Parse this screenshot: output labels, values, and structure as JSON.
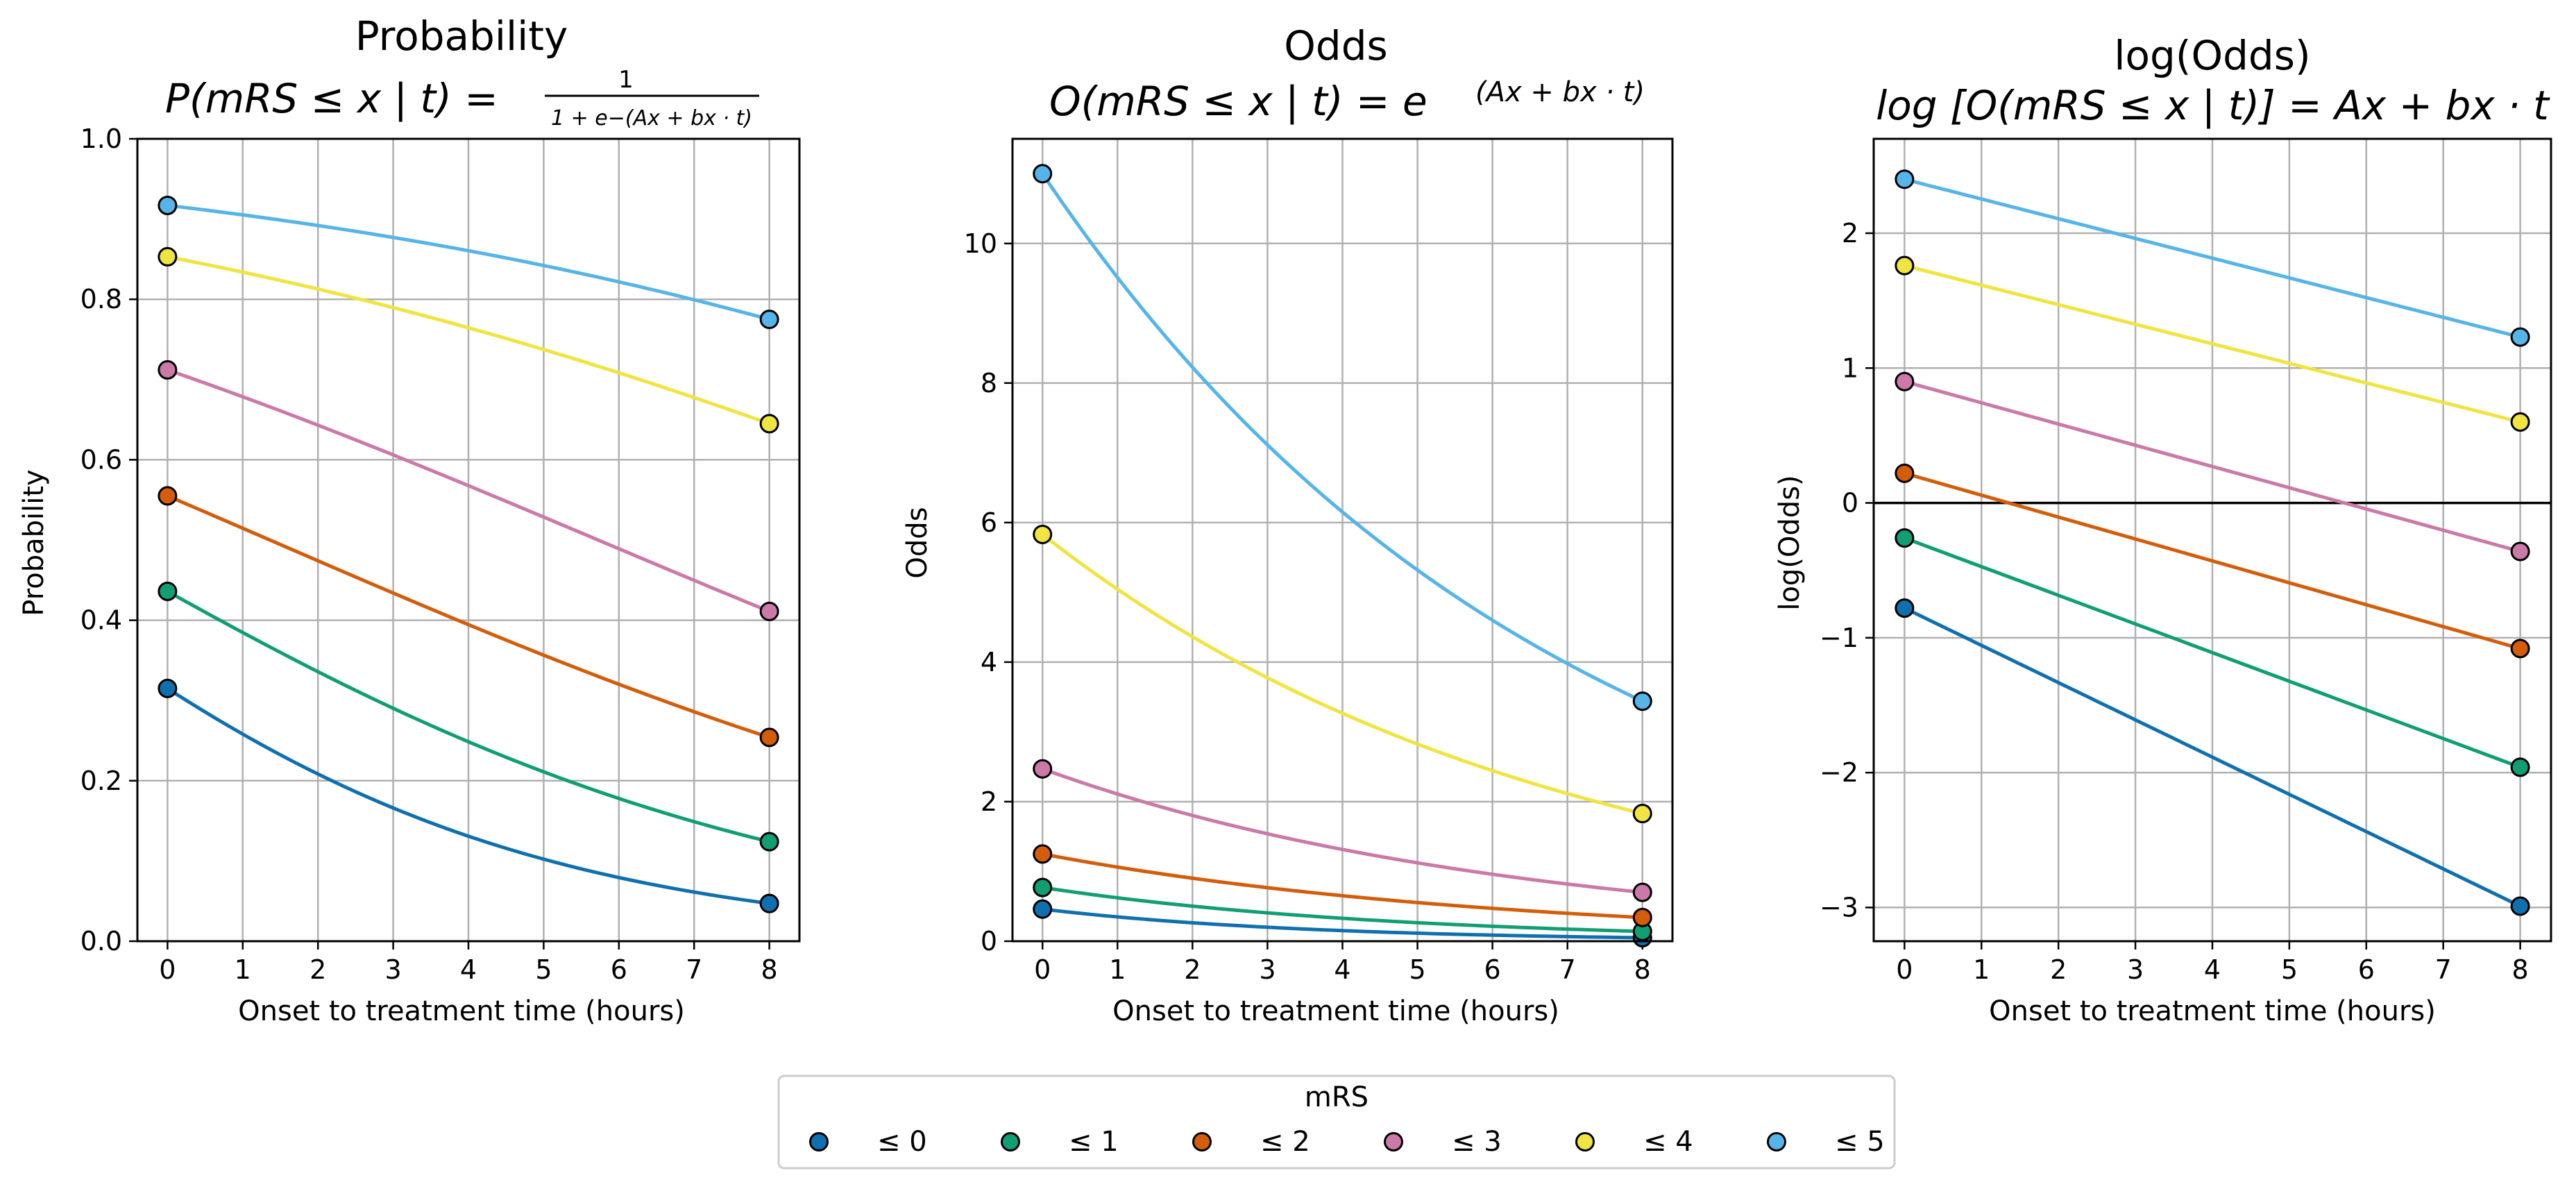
{
  "figure": {
    "legend": {
      "title": "mRS",
      "entries": [
        {
          "label": "≤ 0",
          "color": "#0f6faf"
        },
        {
          "label": "≤ 1",
          "color": "#129e73"
        },
        {
          "label": "≤ 2",
          "color": "#d35d0b"
        },
        {
          "label": "≤ 3",
          "color": "#cb79a7"
        },
        {
          "label": "≤ 4",
          "color": "#f0e442"
        },
        {
          "label": "≤ 5",
          "color": "#56b4e9"
        }
      ]
    }
  },
  "chart_data": [
    {
      "type": "line",
      "title": "Probability",
      "formula": {
        "lhs": "P(mRS ≤ x | t) =",
        "numerator": "1",
        "denominator": "1 + e−(Ax + bx · t)"
      },
      "xlabel": "Onset to treatment time (hours)",
      "ylabel": "Probability",
      "xlim": [
        -0.4,
        8.4
      ],
      "ylim": [
        0.0,
        1.0
      ],
      "xticks": [
        0,
        1,
        2,
        3,
        4,
        5,
        6,
        7,
        8
      ],
      "yticks": [
        0.0,
        0.2,
        0.4,
        0.6,
        0.8,
        1.0
      ],
      "ytick_labels": [
        "0.0",
        "0.2",
        "0.4",
        "0.6",
        "0.8",
        "1.0"
      ],
      "grid": true,
      "series": [
        {
          "name": "≤ 0",
          "x": [
            0,
            8
          ],
          "y": [
            0.315,
            0.047
          ]
        },
        {
          "name": "≤ 1",
          "x": [
            0,
            8
          ],
          "y": [
            0.436,
            0.124
          ]
        },
        {
          "name": "≤ 2",
          "x": [
            0,
            8
          ],
          "y": [
            0.555,
            0.254
          ]
        },
        {
          "name": "≤ 3",
          "x": [
            0,
            8
          ],
          "y": [
            0.712,
            0.411
          ]
        },
        {
          "name": "≤ 4",
          "x": [
            0,
            8
          ],
          "y": [
            0.853,
            0.645
          ]
        },
        {
          "name": "≤ 5",
          "x": [
            0,
            8
          ],
          "y": [
            0.917,
            0.775
          ]
        }
      ]
    },
    {
      "type": "line",
      "title": "Odds",
      "formula": {
        "lhs": "O(mRS ≤ x | t) = e",
        "exponent": "(Ax + bx · t)"
      },
      "xlabel": "Onset to treatment time (hours)",
      "ylabel": "Odds",
      "xlim": [
        -0.4,
        8.4
      ],
      "ylim": [
        0,
        11.5
      ],
      "xticks": [
        0,
        1,
        2,
        3,
        4,
        5,
        6,
        7,
        8
      ],
      "yticks": [
        0,
        2,
        4,
        6,
        8,
        10
      ],
      "ytick_labels": [
        "0",
        "2",
        "4",
        "6",
        "8",
        "10"
      ],
      "grid": true,
      "series": [
        {
          "name": "≤ 0",
          "x": [
            0,
            8
          ],
          "y": [
            0.46,
            0.05
          ]
        },
        {
          "name": "≤ 1",
          "x": [
            0,
            8
          ],
          "y": [
            0.77,
            0.14
          ]
        },
        {
          "name": "≤ 2",
          "x": [
            0,
            8
          ],
          "y": [
            1.25,
            0.34
          ]
        },
        {
          "name": "≤ 3",
          "x": [
            0,
            8
          ],
          "y": [
            2.47,
            0.7
          ]
        },
        {
          "name": "≤ 4",
          "x": [
            0,
            8
          ],
          "y": [
            5.83,
            1.83
          ]
        },
        {
          "name": "≤ 5",
          "x": [
            0,
            8
          ],
          "y": [
            11.0,
            3.44
          ]
        }
      ]
    },
    {
      "type": "line",
      "title": "log(Odds)",
      "formula": {
        "lhs": "log [O(mRS ≤ x | t)] = Ax + bx · t"
      },
      "xlabel": "Onset to treatment time (hours)",
      "ylabel": "log(Odds)",
      "xlim": [
        -0.4,
        8.4
      ],
      "ylim": [
        -3.25,
        2.7
      ],
      "xticks": [
        0,
        1,
        2,
        3,
        4,
        5,
        6,
        7,
        8
      ],
      "yticks": [
        -3,
        -2,
        -1,
        0,
        1,
        2
      ],
      "ytick_labels": [
        "−3",
        "−2",
        "−1",
        "0",
        "1",
        "2"
      ],
      "grid": true,
      "zero_line": true,
      "series": [
        {
          "name": "≤ 0",
          "x": [
            0,
            8
          ],
          "y": [
            -0.78,
            -2.99
          ]
        },
        {
          "name": "≤ 1",
          "x": [
            0,
            8
          ],
          "y": [
            -0.26,
            -1.96
          ]
        },
        {
          "name": "≤ 2",
          "x": [
            0,
            8
          ],
          "y": [
            0.22,
            -1.08
          ]
        },
        {
          "name": "≤ 3",
          "x": [
            0,
            8
          ],
          "y": [
            0.9,
            -0.36
          ]
        },
        {
          "name": "≤ 4",
          "x": [
            0,
            8
          ],
          "y": [
            1.76,
            0.6
          ]
        },
        {
          "name": "≤ 5",
          "x": [
            0,
            8
          ],
          "y": [
            2.4,
            1.23
          ]
        }
      ]
    }
  ]
}
